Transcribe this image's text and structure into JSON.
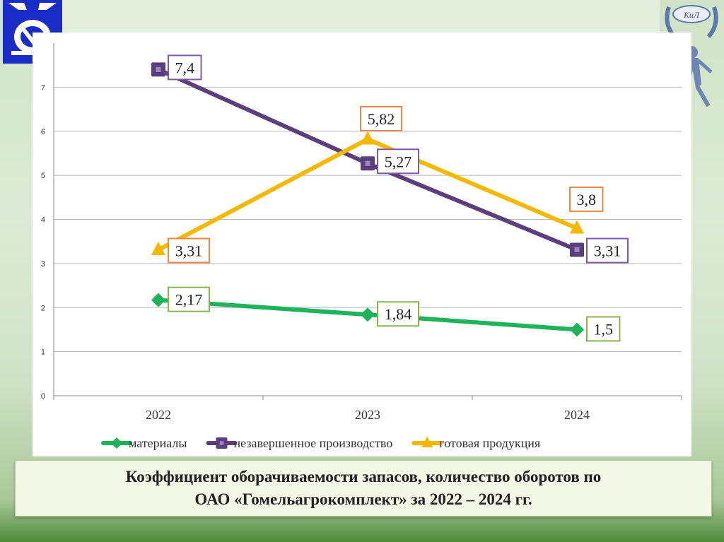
{
  "caption": {
    "line1": "Коэффициент оборачиваемости запасов, количество оборотов по",
    "line2": "ОАО «Гомельагрокомплект» за 2022 – 2024 гг."
  },
  "logo_right": {
    "text": "КиЛ"
  },
  "colors": {
    "materials": "#1eb35a",
    "wip": "#5b3f7c",
    "finished": "#f5b800",
    "label_border_green": "#8ab34a",
    "label_border_purple": "#7e5aa3",
    "label_border_orange": "#e8874a",
    "grid": "#b8b8b8",
    "logo_blue": "#1a2cc8"
  },
  "chart_data": {
    "type": "line",
    "categories": [
      "2022",
      "2023",
      "2024"
    ],
    "ylim": [
      0,
      8
    ],
    "yticks": [
      "0",
      "1",
      "2",
      "3",
      "4",
      "5",
      "6",
      "7"
    ],
    "grid": true,
    "legend_position": "bottom",
    "series": [
      {
        "key": "materials",
        "name": "материалы",
        "marker": "diamond",
        "values": [
          2.17,
          1.84,
          1.5
        ],
        "labels": [
          "2,17",
          "1,84",
          "1,5"
        ]
      },
      {
        "key": "wip",
        "name": "незавершенное производство",
        "marker": "square",
        "values": [
          7.4,
          5.27,
          3.31
        ],
        "labels": [
          "7,4",
          "5,27",
          "3,31"
        ]
      },
      {
        "key": "finished",
        "name": "готовая продукция",
        "marker": "triangle",
        "values": [
          3.31,
          5.82,
          3.8
        ],
        "labels": [
          "3,31",
          "5,82",
          "3,8"
        ]
      }
    ]
  }
}
